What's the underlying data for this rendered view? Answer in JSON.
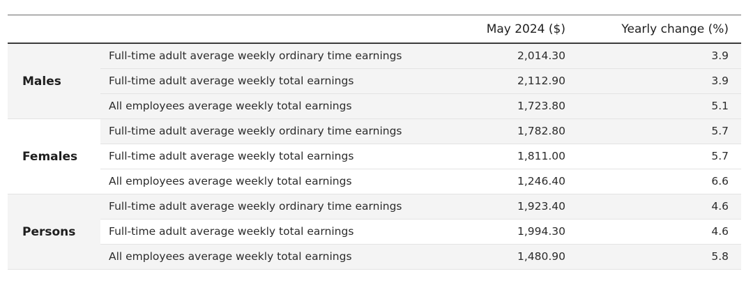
{
  "header": {
    "col_may": "May 2024 ($)",
    "col_yoy": "Yearly change (%)"
  },
  "groups": [
    {
      "label": "Males",
      "rows": [
        {
          "desc": "Full-time adult average weekly ordinary time earnings",
          "may": "2,014.30",
          "yoy": "3.9"
        },
        {
          "desc": "Full-time adult average weekly total earnings",
          "may": "2,112.90",
          "yoy": "3.9"
        },
        {
          "desc": "All employees average weekly total earnings",
          "may": "1,723.80",
          "yoy": "5.1"
        }
      ]
    },
    {
      "label": "Females",
      "rows": [
        {
          "desc": "Full-time adult average weekly ordinary time earnings",
          "may": "1,782.80",
          "yoy": "5.7"
        },
        {
          "desc": "Full-time adult average weekly total earnings",
          "may": "1,811.00",
          "yoy": "5.7"
        },
        {
          "desc": "All employees average weekly total earnings",
          "may": "1,246.40",
          "yoy": "6.6"
        }
      ]
    },
    {
      "label": "Persons",
      "rows": [
        {
          "desc": "Full-time adult average weekly ordinary time earnings",
          "may": "1,923.40",
          "yoy": "4.6"
        },
        {
          "desc": "Full-time adult average weekly total earnings",
          "may": "1,994.30",
          "yoy": "4.6"
        },
        {
          "desc": "All employees average weekly total earnings",
          "may": "1,480.90",
          "yoy": "5.8"
        }
      ]
    }
  ]
}
